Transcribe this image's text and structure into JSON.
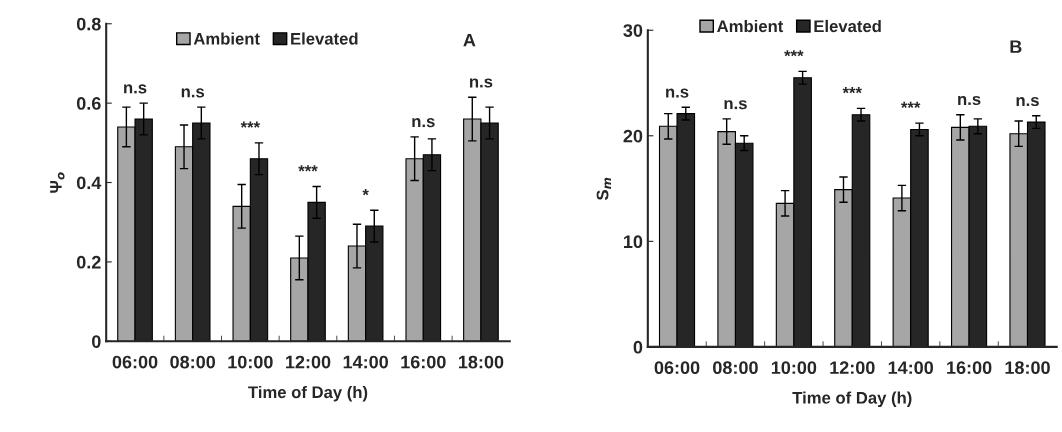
{
  "chart_data": [
    {
      "type": "bar",
      "xlabel": "Time of Day (h)",
      "ylabel": "Ψ$_{o}$",
      "categories": [
        "06:00",
        "08:00",
        "10:00",
        "12:00",
        "14:00",
        "16:00",
        "18:00"
      ],
      "series": [
        {
          "name": "Ambient",
          "color": "#a6a6a6",
          "values": [
            0.54,
            0.49,
            0.34,
            0.21,
            0.24,
            0.46,
            0.56
          ],
          "errors": [
            0.05,
            0.055,
            0.055,
            0.055,
            0.055,
            0.055,
            0.055
          ]
        },
        {
          "name": "Elevated",
          "color": "#262626",
          "values": [
            0.56,
            0.55,
            0.46,
            0.35,
            0.29,
            0.47,
            0.55
          ],
          "errors": [
            0.04,
            0.04,
            0.04,
            0.04,
            0.04,
            0.04,
            0.04
          ]
        }
      ],
      "ylim": [
        0,
        0.8
      ],
      "yticks": [
        0,
        0.2,
        0.4,
        0.6,
        0.8
      ],
      "legend": "top",
      "grid": false,
      "annotations": [
        "A",
        "n.s",
        "n.s",
        "***",
        "***",
        "*",
        "n.s",
        "n.s"
      ]
    },
    {
      "type": "bar",
      "xlabel": "Time of Day (h)",
      "ylabel": "S$_{m}$",
      "categories": [
        "06:00",
        "08:00",
        "10:00",
        "12:00",
        "14:00",
        "16:00",
        "18:00"
      ],
      "series": [
        {
          "name": "Ambient",
          "color": "#a6a6a6",
          "values": [
            20.9,
            20.4,
            13.6,
            14.9,
            14.1,
            20.8,
            20.2
          ],
          "errors": [
            1.2,
            1.2,
            1.2,
            1.2,
            1.2,
            1.2,
            1.2
          ]
        },
        {
          "name": "Elevated",
          "color": "#262626",
          "values": [
            22.1,
            19.3,
            25.5,
            22.0,
            20.6,
            20.9,
            21.3
          ],
          "errors": [
            0.6,
            0.7,
            0.6,
            0.6,
            0.6,
            0.7,
            0.6
          ]
        }
      ],
      "ylim": [
        0,
        30
      ],
      "yticks": [
        0,
        10,
        20,
        30
      ],
      "legend": "top",
      "grid": false,
      "annotations": [
        "B",
        "n.s",
        "n.s",
        "***",
        "***",
        "***",
        "n.s",
        "n.s"
      ]
    }
  ]
}
